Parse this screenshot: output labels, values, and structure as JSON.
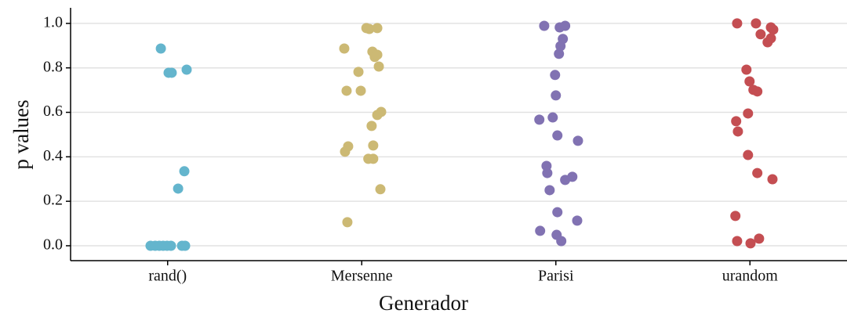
{
  "chart_data": {
    "type": "strip",
    "xlabel": "Generador",
    "ylabel": "p values",
    "xlim": [
      0.5,
      4.5
    ],
    "xticks": [
      {
        "value": 1,
        "label": "rand()"
      },
      {
        "value": 2,
        "label": "Mersenne"
      },
      {
        "value": 3,
        "label": "Parisi"
      },
      {
        "value": 4,
        "label": "urandom"
      }
    ],
    "ylim": [
      -0.067,
      1.07
    ],
    "yticks": [
      {
        "value": 0,
        "label": "0.0"
      },
      0.2,
      0.4,
      0.6,
      0.8,
      {
        "value": 1,
        "label": "1.0"
      }
    ],
    "grid": true,
    "series": [
      {
        "name": "rand()",
        "color": "#64b5cd",
        "x": [
          0.965,
          1.005,
          1.021,
          1.098,
          1.086,
          1.054,
          0.912,
          0.936,
          0.957,
          0.977,
          0.997,
          1.017,
          1.074,
          1.09
        ],
        "values": [
          0.887,
          0.778,
          0.778,
          0.792,
          0.335,
          0.257,
          0,
          0,
          0,
          0,
          0,
          0,
          0,
          0
        ]
      },
      {
        "name": "Mersenne",
        "color": "#ccb974",
        "x": [
          1.91,
          2.024,
          2.039,
          2.08,
          2.055,
          2.067,
          2.08,
          2.088,
          1.983,
          1.922,
          1.995,
          2.1,
          2.08,
          2.051,
          2.059,
          1.93,
          1.914,
          2.034,
          2.059,
          2.096,
          1.926
        ],
        "values": [
          0.887,
          0.979,
          0.975,
          0.979,
          0.873,
          0.849,
          0.859,
          0.806,
          0.782,
          0.697,
          0.697,
          0.602,
          0.588,
          0.539,
          0.451,
          0.447,
          0.423,
          0.391,
          0.391,
          0.254,
          0.106
        ]
      },
      {
        "name": "Parisi",
        "color": "#8172b2",
        "x": [
          2.94,
          3.048,
          3.02,
          3.036,
          3.024,
          3.016,
          2.996,
          3.0,
          2.915,
          2.984,
          3.008,
          3.114,
          2.952,
          2.956,
          3.085,
          3.048,
          2.968,
          3.008,
          2.919,
          3.004,
          3.028,
          3.11
        ],
        "values": [
          0.989,
          0.989,
          0.982,
          0.93,
          0.898,
          0.863,
          0.768,
          0.676,
          0.567,
          0.577,
          0.496,
          0.472,
          0.359,
          0.327,
          0.31,
          0.296,
          0.25,
          0.151,
          0.067,
          0.049,
          0.021,
          0.113
        ]
      },
      {
        "name": "urandom",
        "color": "#c44e52",
        "x": [
          3.934,
          4.031,
          4.108,
          4.12,
          4.055,
          4.108,
          4.091,
          3.982,
          3.998,
          4.018,
          4.038,
          3.99,
          3.929,
          3.938,
          3.99,
          4.038,
          4.116,
          3.925,
          3.934,
          4.047,
          4.003
        ],
        "values": [
          1.0,
          1.0,
          0.982,
          0.972,
          0.951,
          0.933,
          0.915,
          0.792,
          0.739,
          0.701,
          0.694,
          0.595,
          0.56,
          0.514,
          0.408,
          0.327,
          0.299,
          0.134,
          0.021,
          0.032,
          0.011
        ]
      }
    ]
  }
}
